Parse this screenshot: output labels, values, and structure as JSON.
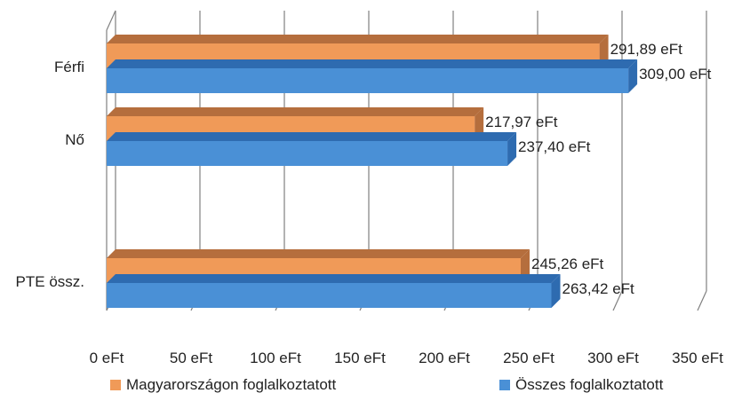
{
  "chart_data": {
    "type": "bar",
    "orientation": "horizontal",
    "three_d": true,
    "categories": [
      "Férfi",
      "Nő",
      "PTE össz."
    ],
    "series": [
      {
        "name": "Magyarországon foglalkoztatott",
        "values": [
          291.89,
          217.97,
          245.26
        ],
        "labels": [
          "291,89 eFt",
          "217,97 eFt",
          "245,26 eFt"
        ],
        "color": "#F09A58",
        "top_color": "#B56E3D"
      },
      {
        "name": "Összes foglalkoztatott",
        "values": [
          309.0,
          237.4,
          263.42
        ],
        "labels": [
          "309,00 eFt",
          "237,40 eFt",
          "263,42 eFt"
        ],
        "color": "#4A90D6",
        "top_color": "#2E6BB0"
      }
    ],
    "xlim": [
      0,
      350
    ],
    "xticks": [
      0,
      50,
      100,
      150,
      200,
      250,
      300,
      350
    ],
    "xtick_labels": [
      "0 eFt",
      "50 eFt",
      "100 eFt",
      "150 eFt",
      "200 eFt",
      "250 eFt",
      "300 eFt",
      "350 eFt"
    ],
    "title": "",
    "xlabel": "",
    "ylabel": "",
    "grid": true,
    "legend_position": "bottom"
  },
  "colors": {
    "gridline": "#808080"
  }
}
